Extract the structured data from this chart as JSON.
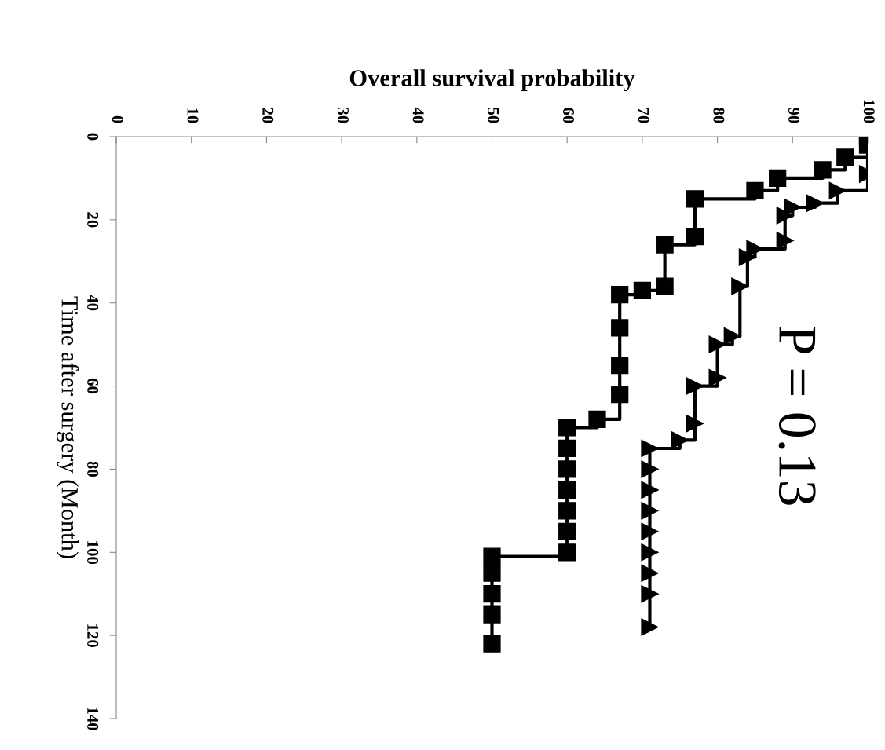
{
  "chart_data": {
    "type": "step",
    "orientation": "horizontal",
    "xlabel": "Overall survival probability",
    "ylabel": "Time after surgery (Month)",
    "annotations": [
      "P = 0.13"
    ],
    "series": [
      {
        "color": "#000000",
        "marker": "square",
        "x": [
          0,
          2,
          5,
          8,
          10,
          13,
          15,
          24,
          26,
          36,
          37,
          38,
          46,
          55,
          62,
          68,
          70,
          75,
          80,
          85,
          90,
          95,
          100,
          101,
          105,
          110,
          115,
          122
        ],
        "values": [
          100,
          100,
          97,
          94,
          88,
          85,
          77,
          77,
          73,
          73,
          70,
          67,
          67,
          67,
          67,
          64,
          60,
          60,
          60,
          60,
          60,
          60,
          60,
          50,
          50,
          50,
          50,
          50
        ]
      },
      {
        "color": "#000000",
        "marker": "triangle",
        "x": [
          0,
          9,
          13,
          16,
          17,
          19,
          25,
          27,
          29,
          36,
          48,
          50,
          58,
          60,
          69,
          73,
          75,
          80,
          85,
          90,
          95,
          100,
          105,
          110,
          118
        ],
        "values": [
          100,
          100,
          96,
          93,
          90,
          89,
          89,
          85,
          84,
          83,
          82,
          80,
          80,
          77,
          77,
          75,
          71,
          71,
          71,
          71,
          71,
          71,
          71,
          71,
          71
        ]
      }
    ],
    "xlim": [
      0,
      100
    ],
    "xticks": [
      0,
      10,
      20,
      30,
      40,
      50,
      60,
      70,
      80,
      90,
      100
    ],
    "ylim": [
      140,
      0
    ],
    "yticks": [
      0,
      20,
      40,
      60,
      80,
      100,
      120,
      140
    ]
  }
}
